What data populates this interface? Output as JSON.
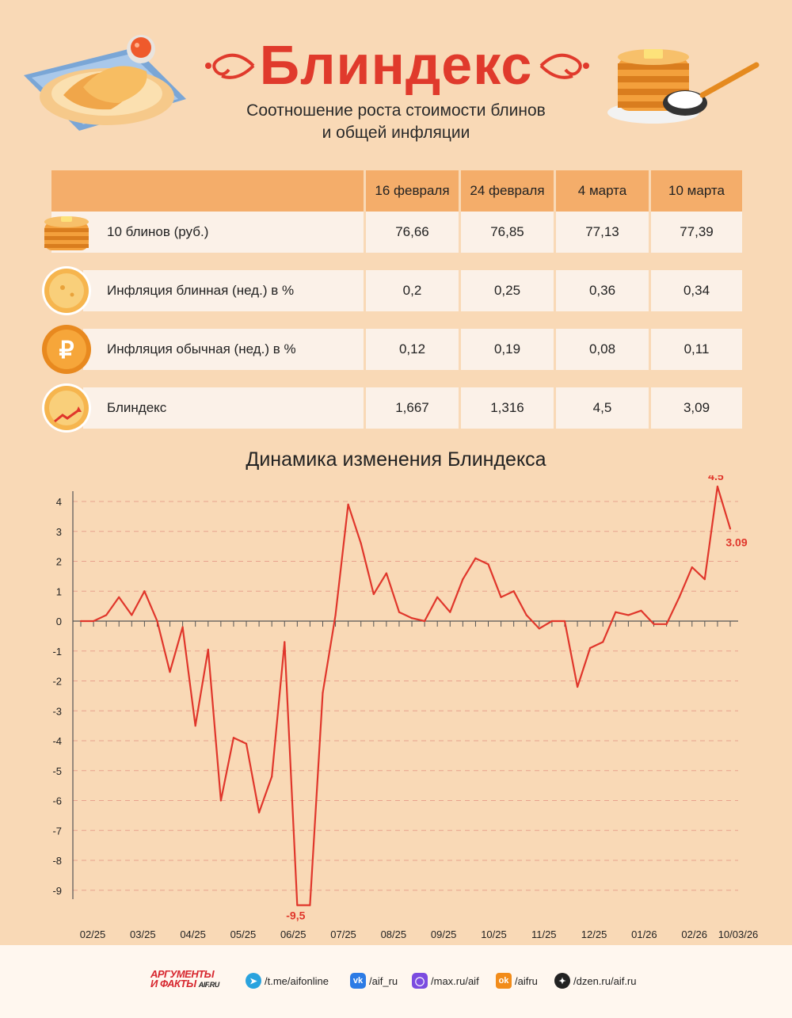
{
  "header": {
    "title": "Блиндекс",
    "subtitle_line1": "Соотношение роста стоимости блинов",
    "subtitle_line2": "и общей инфляции"
  },
  "table": {
    "columns": [
      "16 февраля",
      "24 февраля",
      "4 марта",
      "10 марта"
    ],
    "rows": [
      {
        "label": "10 блинов (руб.)",
        "icon": "pancake-stack-icon",
        "values": [
          "76,66",
          "76,85",
          "77,13",
          "77,39"
        ]
      },
      {
        "label": "Инфляция блинная (нед.) в %",
        "icon": "pancake-icon",
        "values": [
          "0,2",
          "0,25",
          "0,36",
          "0,34"
        ]
      },
      {
        "label": "Инфляция обычная (нед.) в %",
        "icon": "ruble-coin-icon",
        "values": [
          "0,12",
          "0,19",
          "0,08",
          "0,11"
        ]
      },
      {
        "label": "Блиндекс",
        "icon": "pancake-growth-icon",
        "values": [
          "1,667",
          "1,316",
          "4,5",
          "3,09"
        ]
      }
    ]
  },
  "chart_data": {
    "type": "line",
    "title": "Динамика изменения Блиндекса",
    "ylim": [
      -10,
      4.3
    ],
    "yticks": [
      "4",
      "3",
      "2",
      "1",
      "0",
      "-1",
      "-2",
      "-3",
      "-4",
      "-5",
      "-6",
      "-7",
      "-8",
      "-9"
    ],
    "ytick_values": [
      4,
      3,
      2,
      1,
      0,
      -1,
      -2,
      -3,
      -4,
      -5,
      -6,
      -7,
      -8,
      -9
    ],
    "x_labels": [
      "02/25",
      "03/25",
      "04/25",
      "05/25",
      "06/25",
      "07/25",
      "08/25",
      "09/25",
      "10/25",
      "11/25",
      "12/25",
      "01/26",
      "02/26",
      "10/03/26"
    ],
    "grid": "horizontal dashed",
    "line_color": "#e0362b",
    "series": [
      {
        "values": [
          0,
          0,
          0.2,
          0.8,
          0.2,
          1.0,
          0,
          -1.7,
          -0.2,
          -3.5,
          -0.95,
          -6.0,
          -3.9,
          -4.1,
          -6.4,
          -5.2,
          -0.7,
          -9.5,
          -9.5,
          -2.4,
          0.2,
          3.9,
          2.6,
          0.9,
          1.6,
          0.3,
          0.1,
          0,
          0.8,
          0.3,
          1.4,
          2.1,
          1.9,
          0.8,
          1.0,
          0.2,
          -0.25,
          0,
          0,
          -2.2,
          -0.9,
          -0.7,
          0.3,
          0.2,
          0.35,
          -0.1,
          -0.1,
          0.8,
          1.8,
          1.4,
          4.5,
          3.09
        ]
      }
    ],
    "annotations": [
      {
        "text": "4.5",
        "value": 4.5
      },
      {
        "text": "3.09",
        "value": 3.09
      },
      {
        "text": "-9,5",
        "value": -9.5
      }
    ]
  },
  "footer": {
    "logo_line1": "АРГУМЕНТЫ",
    "logo_line2": "И ФАКТЫ",
    "logo_site": "AIF.RU",
    "links": [
      {
        "icon": "telegram-icon",
        "text": "/t.me/aifonline",
        "color": "#2aa3de"
      },
      {
        "icon": "vk-icon",
        "text": "/aif_ru",
        "color": "#2c7be5"
      },
      {
        "icon": "max-icon",
        "text": "/max.ru/aif",
        "color": "#7b4be0"
      },
      {
        "icon": "odnoklassniki-icon",
        "text": "/aifru",
        "color": "#f28c1a"
      },
      {
        "icon": "dzen-icon",
        "text": "/dzen.ru/aif.ru",
        "color": "#222222"
      }
    ]
  }
}
